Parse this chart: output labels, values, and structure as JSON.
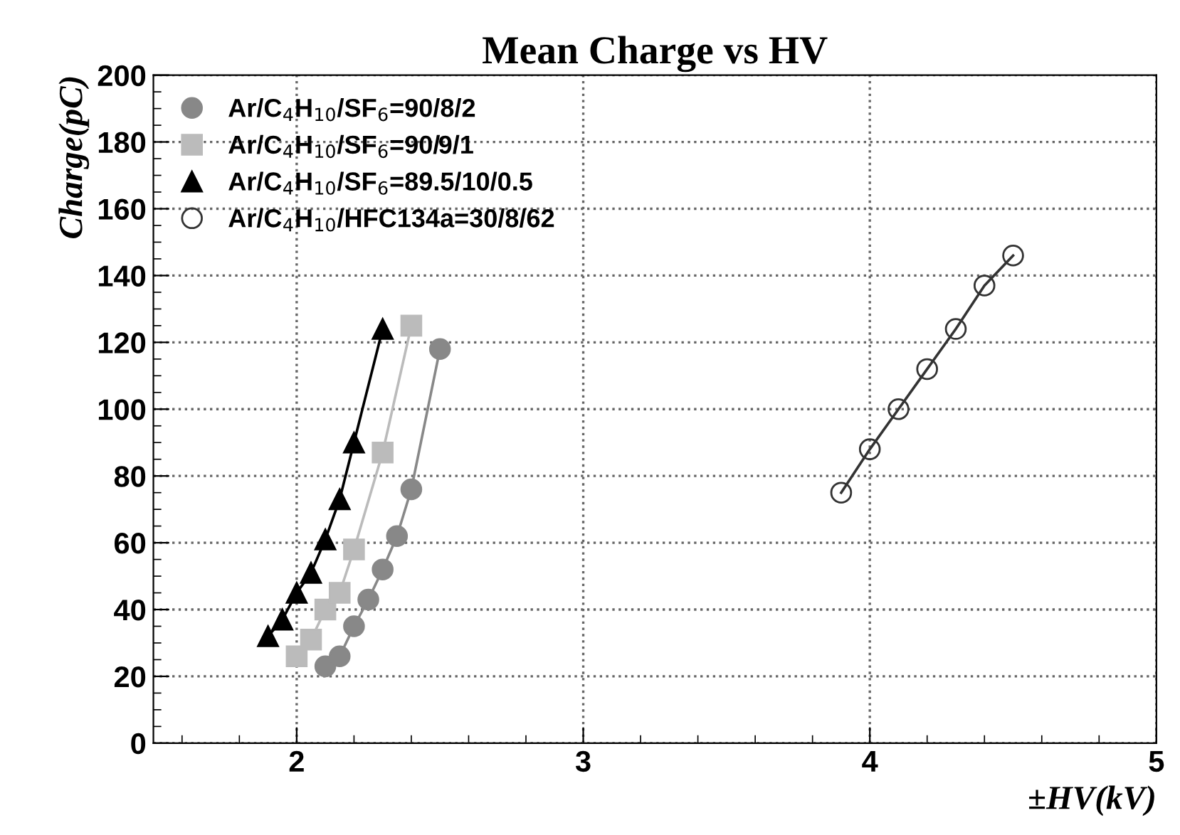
{
  "chart_data": {
    "type": "line",
    "title": "Mean Charge vs HV",
    "xlabel": "±HV(kV)",
    "ylabel": "Charge(pC)",
    "xlim": [
      1.5,
      5
    ],
    "xticks": [
      2,
      3,
      4,
      5
    ],
    "ylim": [
      0,
      200
    ],
    "yticks": [
      0,
      20,
      40,
      60,
      80,
      100,
      120,
      140,
      160,
      180,
      200
    ],
    "grid": true,
    "legend": "top left",
    "series": [
      {
        "name": "Ar/C$_{4}$H$_{10}$/SF$_{6}$=90/8/2",
        "color": "#888888",
        "marker": "circle",
        "x": [
          2.1,
          2.15,
          2.2,
          2.25,
          2.3,
          2.35,
          2.4,
          2.5
        ],
        "values": [
          23,
          26,
          35,
          43,
          52,
          62,
          76,
          118
        ]
      },
      {
        "name": "Ar/C$_{4}$H$_{10}$/SF$_{6}$=90/9/1",
        "color": "#bbbbbb",
        "marker": "square",
        "x": [
          2.0,
          2.05,
          2.1,
          2.15,
          2.2,
          2.3,
          2.4
        ],
        "values": [
          26,
          31,
          40,
          45,
          58,
          87,
          125
        ]
      },
      {
        "name": "Ar/C$_{4}$H$_{10}$/SF$_{6}$=89.5/10/0.5",
        "color": "#000000",
        "marker": "triangle",
        "x": [
          1.9,
          1.95,
          2.0,
          2.05,
          2.1,
          2.15,
          2.2,
          2.3
        ],
        "values": [
          32,
          37,
          45,
          51,
          61,
          73,
          90,
          124
        ]
      },
      {
        "name": "Ar/C$_{4}$H$_{10}$/HFC134a=30/8/62",
        "color": "#333333",
        "marker": "circle",
        "x": [
          3.9,
          4.0,
          4.1,
          4.2,
          4.3,
          4.4,
          4.5
        ],
        "values": [
          75,
          88,
          100,
          112,
          124,
          137,
          146
        ]
      }
    ]
  }
}
